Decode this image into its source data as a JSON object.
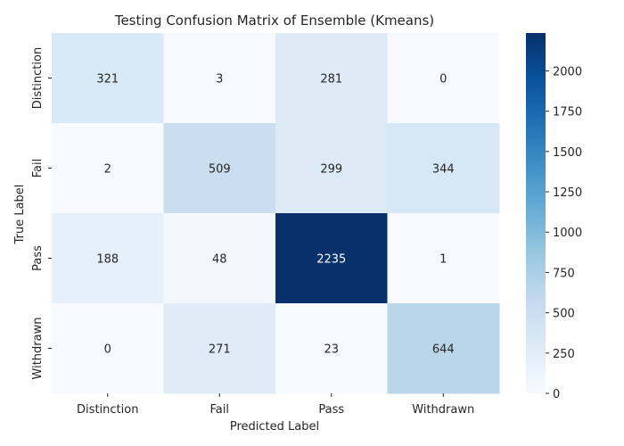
{
  "chart_data": {
    "type": "heatmap",
    "title": "Testing Confusion Matrix of Ensemble (Kmeans)",
    "xlabel": "Predicted Label",
    "ylabel": "True Label",
    "x_categories": [
      "Distinction",
      "Fail",
      "Pass",
      "Withdrawn"
    ],
    "y_categories": [
      "Distinction",
      "Fail",
      "Pass",
      "Withdrawn"
    ],
    "values": [
      [
        321,
        3,
        281,
        0
      ],
      [
        2,
        509,
        299,
        344
      ],
      [
        188,
        48,
        2235,
        1
      ],
      [
        0,
        271,
        23,
        644
      ]
    ],
    "colormap": "Blues",
    "colormap_stops": [
      "#f7fbff",
      "#deebf7",
      "#c6dbef",
      "#9ecae1",
      "#6baed6",
      "#4292c6",
      "#2171b5",
      "#08519c",
      "#08306b"
    ],
    "vmin": 0,
    "vmax": 2235,
    "colorbar_ticks": [
      0,
      250,
      500,
      750,
      1000,
      1250,
      1500,
      1750,
      2000
    ],
    "grid": false
  }
}
